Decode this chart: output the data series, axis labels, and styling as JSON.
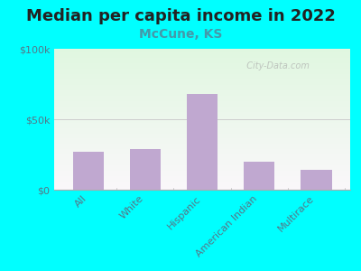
{
  "title": "Median per capita income in 2022",
  "subtitle": "McCune, KS",
  "categories": [
    "All",
    "White",
    "Hispanic",
    "American Indian",
    "Multirace"
  ],
  "values": [
    27000,
    29000,
    68000,
    20000,
    14000
  ],
  "bar_color": "#c0a8d0",
  "background_outer": "#00ffff",
  "title_color": "#222222",
  "subtitle_color": "#4499aa",
  "tick_label_color": "#557788",
  "watermark": "  City-Data.com",
  "ylim": [
    0,
    100000
  ],
  "yticks": [
    0,
    50000,
    100000
  ],
  "ytick_labels": [
    "$0",
    "$50k",
    "$100k"
  ],
  "title_fontsize": 13,
  "subtitle_fontsize": 10,
  "tick_fontsize": 8
}
